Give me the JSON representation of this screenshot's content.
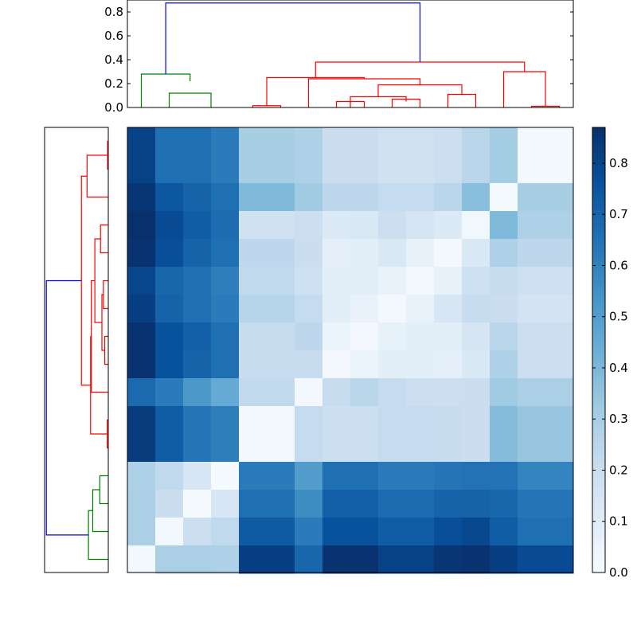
{
  "chart_data": [
    {
      "type": "dendrogram",
      "orientation": "top",
      "ylim": [
        0,
        0.9
      ],
      "yticks": [
        "0.0",
        "0.2",
        "0.4",
        "0.6",
        "0.8"
      ],
      "colors": {
        "green": "#008000",
        "red": "#ff0000",
        "blue": "#0000ff"
      },
      "links": [
        {
          "x": [
            212.5,
            212.5,
            265,
            265
          ],
          "y": [
            0,
            0.12,
            0.12,
            0
          ],
          "color": "green"
        },
        {
          "x": [
            177.5,
            177.5,
            238.75,
            238.75
          ],
          "y": [
            0,
            0.28,
            0.28,
            0.22
          ],
          "color": "green"
        },
        {
          "x": [
            317.5,
            317.5,
            352.5,
            352.5
          ],
          "y": [
            0,
            0.015,
            0.015,
            0
          ],
          "color": "red"
        },
        {
          "x": [
            422.5,
            422.5,
            457.5,
            457.5
          ],
          "y": [
            0,
            0.05,
            0.05,
            0
          ],
          "color": "red"
        },
        {
          "x": [
            440,
            440,
            510,
            510
          ],
          "y": [
            0,
            0.09,
            0.09,
            0.05
          ],
          "color": "red"
        },
        {
          "x": [
            492.5,
            492.5,
            527.5,
            527.5
          ],
          "y": [
            0,
            0.07,
            0.07,
            0
          ],
          "color": "red"
        },
        {
          "x": [
            475,
            475,
            580,
            580
          ],
          "y": [
            0.09,
            0.19,
            0.19,
            0.11
          ],
          "color": "red"
        },
        {
          "x": [
            562.5,
            562.5,
            597.5,
            597.5
          ],
          "y": [
            0,
            0.11,
            0.11,
            0
          ],
          "color": "red"
        },
        {
          "x": [
            387.5,
            387.5,
            527.5,
            527.5
          ],
          "y": [
            0,
            0.24,
            0.24,
            0.19
          ],
          "color": "red"
        },
        {
          "x": [
            335,
            335,
            457.5,
            457.5
          ],
          "y": [
            0.015,
            0.25,
            0.25,
            0.24
          ],
          "color": "red"
        },
        {
          "x": [
            667.5,
            667.5,
            702.5,
            702.5
          ],
          "y": [
            0,
            0.01,
            0.01,
            0
          ],
          "color": "red"
        },
        {
          "x": [
            632.5,
            632.5,
            685,
            685
          ],
          "y": [
            0,
            0.3,
            0.3,
            0.01
          ],
          "color": "red"
        },
        {
          "x": [
            396.25,
            396.25,
            658.75,
            658.75
          ],
          "y": [
            0.25,
            0.38,
            0.38,
            0.3
          ],
          "color": "red"
        },
        {
          "x": [
            208.125,
            208.125,
            527.5,
            527.5
          ],
          "y": [
            0.28,
            0.875,
            0.875,
            0.38
          ],
          "color": "blue"
        }
      ]
    },
    {
      "type": "dendrogram",
      "orientation": "left",
      "xlim": [
        0,
        0.9
      ],
      "colors": {
        "green": "#008000",
        "red": "#ff0000",
        "blue": "#0000ff"
      },
      "links": [
        {
          "y": [
            177.5,
            177.5,
            212.5,
            212.5
          ],
          "x": [
            0,
            0.01,
            0.01,
            0
          ],
          "color": "red"
        },
        {
          "y": [
            195,
            195,
            247.5,
            247.5
          ],
          "x": [
            0.01,
            0.3,
            0.3,
            0
          ],
          "color": "red"
        },
        {
          "y": [
            282.5,
            282.5,
            317.5,
            317.5
          ],
          "x": [
            0,
            0.11,
            0.11,
            0
          ],
          "color": "red"
        },
        {
          "y": [
            352.5,
            352.5,
            387.5,
            387.5
          ],
          "x": [
            0,
            0.07,
            0.07,
            0
          ],
          "color": "red"
        },
        {
          "y": [
            422.5,
            422.5,
            457.5,
            457.5
          ],
          "x": [
            0,
            0.05,
            0.05,
            0
          ],
          "color": "red"
        },
        {
          "y": [
            370,
            370,
            440,
            440
          ],
          "x": [
            0.07,
            0.09,
            0.09,
            0.05
          ],
          "color": "red"
        },
        {
          "y": [
            300,
            300,
            405,
            405
          ],
          "x": [
            0.11,
            0.19,
            0.19,
            0.09
          ],
          "color": "red"
        },
        {
          "y": [
            352.5,
            352.5,
            492.5,
            492.5
          ],
          "x": [
            0.19,
            0.24,
            0.24,
            0
          ],
          "color": "red"
        },
        {
          "y": [
            527.5,
            527.5,
            562.5,
            562.5
          ],
          "x": [
            0,
            0.015,
            0.015,
            0
          ],
          "color": "red"
        },
        {
          "y": [
            422.5,
            422.5,
            545,
            545
          ],
          "x": [
            0.24,
            0.25,
            0.25,
            0.015
          ],
          "color": "red"
        },
        {
          "y": [
            221.25,
            221.25,
            483.75,
            483.75
          ],
          "x": [
            0.3,
            0.38,
            0.38,
            0.25
          ],
          "color": "red"
        },
        {
          "y": [
            597.5,
            597.5,
            632.5,
            632.5
          ],
          "x": [
            0,
            0.12,
            0.12,
            0
          ],
          "color": "green"
        },
        {
          "y": [
            615,
            615,
            667.5,
            667.5
          ],
          "x": [
            0.12,
            0.22,
            0.22,
            0
          ],
          "color": "green"
        },
        {
          "y": [
            641.25,
            641.25,
            702.5,
            702.5
          ],
          "x": [
            0.22,
            0.28,
            0.28,
            0
          ],
          "color": "green"
        },
        {
          "y": [
            352.5,
            352.5,
            671.875,
            671.875
          ],
          "x": [
            0.38,
            0.875,
            0.875,
            0.28
          ],
          "color": "blue"
        }
      ]
    },
    {
      "type": "heatmap",
      "colormap": "Blues",
      "vmin": 0,
      "vmax": 0.87,
      "row_heights": [
        2,
        1,
        1,
        1,
        1,
        1,
        1,
        1,
        1,
        2,
        1,
        1,
        1,
        1
      ],
      "col_widths": [
        1,
        1,
        1,
        1,
        2,
        1,
        1,
        1,
        1,
        1,
        1,
        1,
        1,
        2
      ],
      "values": [
        [
          0.81,
          0.66,
          0.66,
          0.62,
          0.3,
          0.28,
          0.2,
          0.2,
          0.17,
          0.17,
          0.19,
          0.25,
          0.31,
          0.02
        ],
        [
          0.85,
          0.74,
          0.7,
          0.66,
          0.39,
          0.32,
          0.24,
          0.24,
          0.22,
          0.22,
          0.25,
          0.37,
          0.01,
          0.3
        ],
        [
          0.87,
          0.78,
          0.72,
          0.67,
          0.17,
          0.19,
          0.12,
          0.13,
          0.19,
          0.15,
          0.12,
          0.03,
          0.39,
          0.28
        ],
        [
          0.86,
          0.77,
          0.7,
          0.66,
          0.24,
          0.2,
          0.08,
          0.09,
          0.13,
          0.07,
          0.02,
          0.13,
          0.28,
          0.24
        ],
        [
          0.8,
          0.69,
          0.66,
          0.61,
          0.23,
          0.18,
          0.09,
          0.09,
          0.06,
          0.02,
          0.07,
          0.18,
          0.21,
          0.18
        ],
        [
          0.82,
          0.7,
          0.66,
          0.62,
          0.26,
          0.22,
          0.09,
          0.06,
          0.02,
          0.06,
          0.14,
          0.21,
          0.2,
          0.16
        ],
        [
          0.86,
          0.76,
          0.71,
          0.66,
          0.21,
          0.24,
          0.05,
          0.02,
          0.07,
          0.09,
          0.09,
          0.15,
          0.25,
          0.19
        ],
        [
          0.86,
          0.76,
          0.7,
          0.66,
          0.21,
          0.21,
          0.02,
          0.05,
          0.09,
          0.09,
          0.08,
          0.13,
          0.28,
          0.19
        ],
        [
          0.68,
          0.62,
          0.52,
          0.45,
          0.23,
          0.02,
          0.21,
          0.25,
          0.22,
          0.19,
          0.19,
          0.2,
          0.32,
          0.29
        ],
        [
          0.83,
          0.72,
          0.64,
          0.61,
          0.02,
          0.22,
          0.19,
          0.19,
          0.22,
          0.22,
          0.21,
          0.2,
          0.38,
          0.34
        ],
        [
          0.28,
          0.23,
          0.14,
          0.01,
          0.62,
          0.5,
          0.66,
          0.66,
          0.62,
          0.62,
          0.64,
          0.65,
          0.65,
          0.59
        ],
        [
          0.29,
          0.2,
          0.01,
          0.14,
          0.66,
          0.56,
          0.71,
          0.71,
          0.67,
          0.67,
          0.7,
          0.7,
          0.69,
          0.64
        ],
        [
          0.29,
          0.02,
          0.19,
          0.23,
          0.73,
          0.62,
          0.76,
          0.76,
          0.72,
          0.72,
          0.77,
          0.79,
          0.72,
          0.66
        ],
        [
          0.02,
          0.29,
          0.29,
          0.28,
          0.82,
          0.69,
          0.86,
          0.86,
          0.81,
          0.81,
          0.85,
          0.86,
          0.82,
          0.78
        ]
      ]
    },
    {
      "type": "colorbar",
      "range": [
        0,
        0.87
      ],
      "ticks": [
        "0.0",
        "0.1",
        "0.2",
        "0.3",
        "0.4",
        "0.5",
        "0.6",
        "0.7",
        "0.8"
      ]
    }
  ]
}
